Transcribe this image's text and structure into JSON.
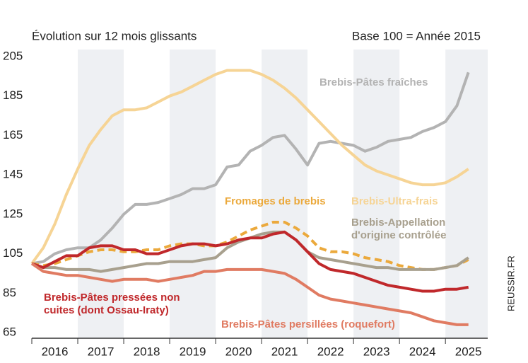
{
  "chart_data": {
    "type": "line",
    "title": "Évolution sur 12 mois glissants",
    "subtitle": "Base 100 = Année 2015",
    "source": "REUSSIR.FR",
    "x": [
      2016,
      2016.25,
      2016.5,
      2016.75,
      2017,
      2017.25,
      2017.5,
      2017.75,
      2018,
      2018.25,
      2018.5,
      2018.75,
      2019,
      2019.25,
      2019.5,
      2019.75,
      2020,
      2020.25,
      2020.5,
      2020.75,
      2021,
      2021.25,
      2021.5,
      2021.75,
      2022,
      2022.25,
      2022.5,
      2022.75,
      2023,
      2023.25,
      2023.5,
      2023.75,
      2024,
      2024.25,
      2024.5,
      2024.75,
      2025,
      2025.25,
      2025.5
    ],
    "xlim": [
      2016,
      2025.92
    ],
    "xticks": [
      {
        "value": 2016.5,
        "label": "2016"
      },
      {
        "value": 2017.5,
        "label": "2017"
      },
      {
        "value": 2018.5,
        "label": "2018"
      },
      {
        "value": 2019.5,
        "label": "2019"
      },
      {
        "value": 2020.5,
        "label": "2020"
      },
      {
        "value": 2021.5,
        "label": "2021"
      },
      {
        "value": 2022.5,
        "label": "2022"
      },
      {
        "value": 2023.5,
        "label": "2023"
      },
      {
        "value": 2024.5,
        "label": "2024"
      },
      {
        "value": 2025.5,
        "label": "2025"
      }
    ],
    "ylim": [
      65,
      205
    ],
    "yticks": [
      65,
      85,
      105,
      125,
      145,
      165,
      185,
      205
    ],
    "series": [
      {
        "name": "Brebis-Pâtes fraîches",
        "color": "#b3b3b3",
        "values": [
          100,
          101,
          105,
          107,
          108,
          108,
          112,
          118,
          125,
          130,
          130,
          131,
          133,
          135,
          138,
          138,
          140,
          149,
          150,
          157,
          160,
          164,
          165,
          158,
          150,
          161,
          162,
          161,
          160,
          157,
          159,
          162,
          163,
          164,
          167,
          169,
          172,
          180,
          197
        ]
      },
      {
        "name": "Brebis-Ultra-frais",
        "color": "#f6d495",
        "values": [
          100,
          108,
          120,
          135,
          148,
          160,
          168,
          175,
          178,
          178,
          179,
          182,
          185,
          187,
          190,
          193,
          196,
          198,
          198,
          198,
          196,
          193,
          189,
          184,
          178,
          172,
          166,
          160,
          155,
          150,
          147,
          145,
          143,
          141,
          140,
          140,
          141,
          144,
          148
        ]
      },
      {
        "name": "Fromages de brebis",
        "color": "#eba93c",
        "dashed": true,
        "values": [
          100,
          99,
          100,
          102,
          104,
          106,
          107,
          107,
          106,
          106,
          107,
          107,
          109,
          110,
          110,
          109,
          109,
          111,
          114,
          117,
          119,
          121,
          121,
          118,
          114,
          108,
          106,
          106,
          105,
          103,
          102,
          101,
          99,
          98,
          97,
          97,
          98,
          99,
          102
        ]
      },
      {
        "name": "Brebis-Appellation d'origine contrôlée",
        "color": "#a8a08e",
        "values": [
          100,
          98,
          98,
          97,
          97,
          97,
          96,
          97,
          98,
          99,
          100,
          100,
          101,
          101,
          101,
          102,
          103,
          108,
          111,
          113,
          115,
          116,
          116,
          112,
          106,
          103,
          102,
          101,
          100,
          99,
          98,
          98,
          97,
          97,
          97,
          97,
          98,
          99,
          103
        ]
      },
      {
        "name": "Brebis-Pâtes pressées non cuites (dont Ossau-Iraty)",
        "color": "#c0282b",
        "values": [
          100,
          98,
          101,
          104,
          104,
          108,
          109,
          109,
          107,
          107,
          105,
          105,
          107,
          109,
          110,
          110,
          109,
          110,
          112,
          113,
          113,
          115,
          116,
          112,
          106,
          100,
          97,
          96,
          95,
          93,
          91,
          89,
          88,
          87,
          86,
          86,
          87,
          87,
          88
        ]
      },
      {
        "name": "Brebis-Pâtes persillées (roquefort)",
        "color": "#e07b62",
        "values": [
          100,
          96,
          95,
          94,
          94,
          93,
          92,
          91,
          92,
          92,
          92,
          91,
          92,
          93,
          94,
          96,
          96,
          97,
          97,
          97,
          97,
          96,
          95,
          92,
          88,
          84,
          82,
          81,
          80,
          79,
          78,
          77,
          76,
          75,
          73,
          71,
          70,
          69,
          69
        ]
      }
    ]
  }
}
